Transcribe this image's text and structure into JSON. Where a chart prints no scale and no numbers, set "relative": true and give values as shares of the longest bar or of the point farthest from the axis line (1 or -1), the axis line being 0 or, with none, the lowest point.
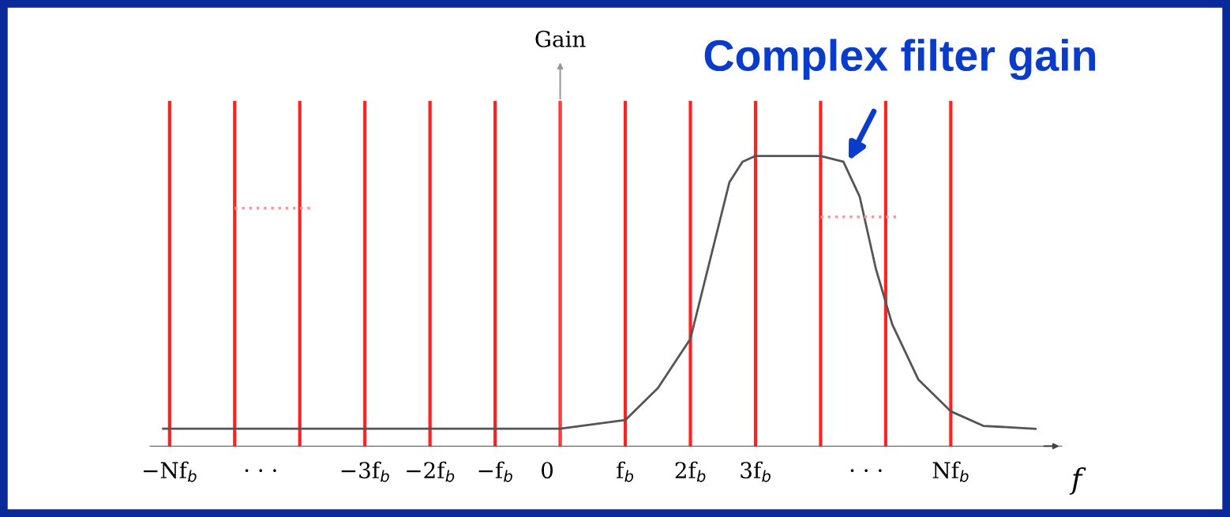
{
  "chart_data": {
    "type": "line",
    "relative": true,
    "xlabel": "f",
    "ylabel": "Gain",
    "xlim": [
      -6.3,
      7.7
    ],
    "xticks": [
      {
        "value": -6,
        "label": "−Nf$_{b}$"
      },
      {
        "value": -4.6,
        "label": "· · ·"
      },
      {
        "value": -3,
        "label": "−3f$_{b}$"
      },
      {
        "value": -2,
        "label": "−2f$_{b}$"
      },
      {
        "value": -1,
        "label": "−f$_{b}$"
      },
      {
        "value": -0.2,
        "label": "0"
      },
      {
        "value": 1,
        "label": "f$_{b}$"
      },
      {
        "value": 2,
        "label": "2f$_{b}$"
      },
      {
        "value": 3,
        "label": "3f$_{b}$"
      },
      {
        "value": 4.7,
        "label": "· · ·"
      },
      {
        "value": 6,
        "label": "Nf$_{b}$"
      }
    ],
    "series": [
      {
        "color": "#555555",
        "x": [
          -6.1,
          -3,
          0,
          1,
          1.5,
          2,
          2.3,
          2.6,
          2.8,
          3,
          4,
          4.35,
          4.6,
          4.85,
          5.1,
          5.5,
          6,
          6.5,
          7.3
        ],
        "values": [
          0.06,
          0.06,
          0.06,
          0.09,
          0.2,
          0.37,
          0.64,
          0.91,
          0.98,
          1.0,
          1.0,
          0.98,
          0.86,
          0.61,
          0.42,
          0.23,
          0.12,
          0.07,
          0.06
        ]
      },
      {
        "color": "#ff9999",
        "line_style": "dotted",
        "x": [
          -5.0,
          -3.8
        ],
        "values": [
          0.82,
          0.82
        ]
      },
      {
        "color": "#ff9999",
        "line_style": "dotted",
        "x": [
          4.0,
          5.2
        ],
        "values": [
          0.79,
          0.79
        ]
      }
    ],
    "ref_lines": [
      {
        "axis": "x",
        "value": -6,
        "color": "#ff2020"
      },
      {
        "axis": "x",
        "value": -5,
        "color": "#ff2020"
      },
      {
        "axis": "x",
        "value": -4,
        "color": "#ff2020"
      },
      {
        "axis": "x",
        "value": -3,
        "color": "#ff2020"
      },
      {
        "axis": "x",
        "value": -2,
        "color": "#ff2020"
      },
      {
        "axis": "x",
        "value": -1,
        "color": "#ff2020"
      },
      {
        "axis": "x",
        "value": 0,
        "color": "#ff2020"
      },
      {
        "axis": "x",
        "value": 1,
        "color": "#ff2020"
      },
      {
        "axis": "x",
        "value": 2,
        "color": "#ff2020"
      },
      {
        "axis": "x",
        "value": 3,
        "color": "#ff2020"
      },
      {
        "axis": "x",
        "value": 4,
        "color": "#ff2020"
      },
      {
        "axis": "x",
        "value": 5,
        "color": "#ff2020"
      },
      {
        "axis": "x",
        "value": 6,
        "color": "#ff2020"
      }
    ],
    "annotations": [
      {
        "text": "Complex filter gain",
        "x": 4.4,
        "y": 0.97
      }
    ]
  }
}
